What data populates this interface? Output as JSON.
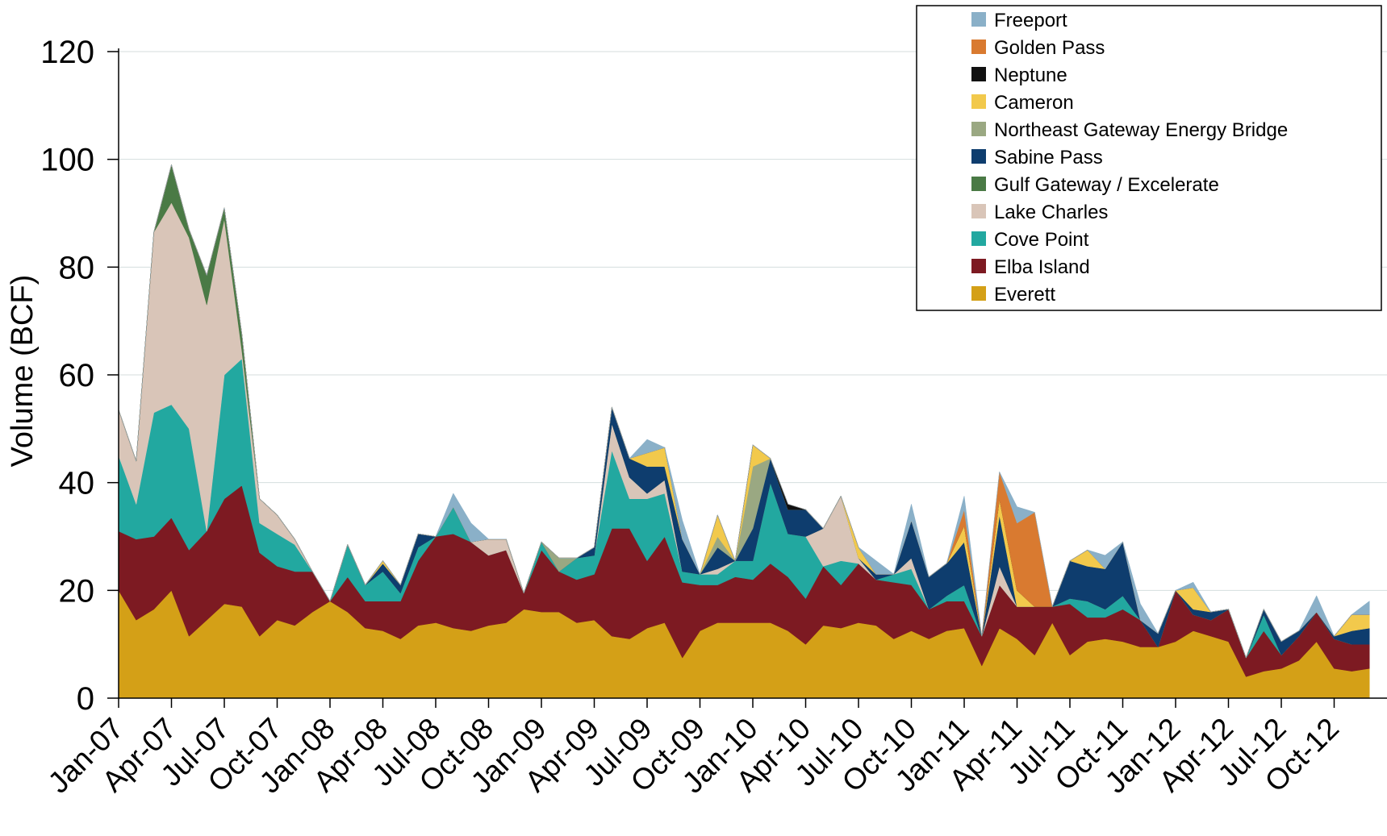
{
  "chart_data": {
    "type": "area",
    "stacked": true,
    "ylabel": "Volume (BCF)",
    "xlabel": "",
    "ylim": [
      0,
      120
    ],
    "yticks": [
      0,
      20,
      40,
      60,
      80,
      100,
      120
    ],
    "grid": "horizontal",
    "legend_position": "top-right",
    "x_tick_labels": [
      "Jan-07",
      "Apr-07",
      "Jul-07",
      "Oct-07",
      "Jan-08",
      "Apr-08",
      "Jul-08",
      "Oct-08",
      "Jan-09",
      "Apr-09",
      "Jul-09",
      "Oct-09",
      "Jan-10",
      "Apr-10",
      "Jul-10",
      "Oct-10",
      "Jan-11",
      "Apr-11",
      "Jul-11",
      "Oct-11",
      "Jan-12",
      "Apr-12",
      "Jul-12",
      "Oct-12"
    ],
    "series": [
      {
        "name": "Everett",
        "color": "#d4a017",
        "values": [
          20,
          14.5,
          16.5,
          20,
          11.5,
          14.5,
          17.5,
          17,
          11.5,
          14.5,
          13.5,
          16,
          18,
          16,
          13,
          12.5,
          11,
          13.5,
          14,
          13,
          12.5,
          13.5,
          14,
          16.5,
          16,
          16,
          14,
          14.5,
          11.5,
          11,
          13,
          14,
          7.5,
          12.5,
          14,
          14,
          14,
          14,
          12.5,
          10,
          13.5,
          13,
          14,
          13.5,
          11,
          12.5,
          11,
          12.5,
          13,
          6,
          13,
          11,
          8,
          14,
          8,
          10.5,
          11,
          10.5,
          9.5,
          9.5,
          10.5,
          12.5,
          11.5,
          10.5,
          4,
          5,
          5.5,
          7,
          10.5,
          5.5,
          5,
          5.5
        ]
      },
      {
        "name": "Elba Island",
        "color": "#7d1a22",
        "values": [
          11,
          15,
          13.5,
          13.5,
          16,
          16.5,
          19.5,
          22.5,
          15.5,
          10,
          10,
          7.5,
          0,
          6.5,
          5,
          5.5,
          7,
          12,
          16,
          17.5,
          16.5,
          13,
          13.5,
          3,
          11.5,
          7.5,
          8,
          8.5,
          20,
          20.5,
          12.5,
          16,
          14,
          8.5,
          7,
          8.5,
          8,
          11,
          10,
          8.5,
          11,
          8,
          11,
          8.5,
          10.5,
          8.5,
          5.5,
          5.5,
          5,
          5.5,
          8,
          6,
          9,
          3,
          9.5,
          4.5,
          4,
          6,
          5,
          0,
          9.5,
          3,
          3,
          6,
          3.5,
          7.5,
          2.5,
          4.5,
          5.5,
          5.5,
          5,
          4.5
        ]
      },
      {
        "name": "Cove Point",
        "color": "#22a8a0",
        "values": [
          14,
          6.5,
          23,
          21,
          22.5,
          0,
          23,
          23.5,
          5.5,
          6,
          5,
          0,
          0,
          6,
          3,
          5.5,
          1.5,
          2.5,
          0,
          5,
          0,
          0,
          0,
          0,
          1.5,
          0,
          4,
          3.5,
          14.5,
          5.5,
          11.5,
          8,
          2,
          2,
          2,
          3,
          3.5,
          15,
          8,
          11.5,
          0,
          4.5,
          0,
          0,
          1.5,
          3,
          0,
          1,
          3,
          0,
          0,
          0,
          0,
          0,
          1,
          3,
          1.5,
          2.5,
          0,
          0,
          0,
          0,
          0,
          0,
          0,
          3,
          0,
          0,
          0,
          0,
          0,
          0
        ]
      },
      {
        "name": "Lake Charles",
        "color": "#d9c5b8",
        "values": [
          8.5,
          8,
          33.5,
          37.5,
          35.5,
          42,
          29,
          1.5,
          4.5,
          3.5,
          1,
          0,
          0,
          0,
          0,
          0,
          0,
          0,
          0,
          0,
          0,
          3,
          2,
          0,
          0,
          0,
          0,
          0,
          5,
          4,
          1,
          2.5,
          0,
          0,
          1,
          0,
          0,
          0,
          0,
          0,
          7,
          12,
          1,
          0,
          0,
          2,
          0,
          0,
          0,
          0,
          3.5,
          0,
          0,
          0,
          0,
          0,
          0,
          0,
          0,
          0,
          0,
          0,
          0,
          0,
          0,
          0,
          0,
          0,
          0,
          0,
          0,
          0
        ]
      },
      {
        "name": "Gulf Gateway / Excelerate",
        "color": "#4a7a45",
        "values": [
          0,
          0,
          0,
          7,
          1.5,
          5.5,
          2,
          3,
          0,
          0,
          0,
          0,
          0,
          0,
          0,
          0,
          0,
          0,
          0,
          0,
          0,
          0,
          0,
          0,
          0,
          0,
          0,
          0,
          0,
          0,
          0,
          0,
          0,
          0,
          0,
          0,
          0,
          0,
          0,
          0,
          0,
          0,
          0,
          0,
          0,
          0,
          0,
          0,
          0,
          0,
          0,
          0,
          0,
          0,
          0,
          0,
          0,
          0,
          0,
          0,
          0,
          0,
          0,
          0,
          0,
          0,
          0,
          0,
          0,
          0,
          0,
          0
        ]
      },
      {
        "name": "Sabine Pass",
        "color": "#0e3d6e",
        "values": [
          0,
          0,
          0,
          0,
          0,
          0,
          0,
          0,
          0,
          0,
          0,
          0,
          0,
          0,
          0,
          1.5,
          1.5,
          2.5,
          0,
          0,
          0,
          0,
          0,
          0,
          0,
          0,
          0,
          1.5,
          3,
          3.5,
          5,
          2.5,
          6,
          0,
          4,
          0,
          6,
          4.5,
          4.5,
          5,
          0,
          0,
          0,
          1,
          0,
          7,
          6,
          6,
          8,
          0,
          9.5,
          0,
          0,
          0,
          7,
          6.5,
          7.5,
          10,
          0,
          2.5,
          0,
          1,
          1.5,
          0,
          0,
          1,
          2.5,
          1,
          0,
          0.5,
          2.5,
          3
        ]
      },
      {
        "name": "Northeast Gateway Energy Bridge",
        "color": "#9aa882",
        "values": [
          0,
          0,
          0,
          0,
          0,
          0,
          0,
          0,
          0,
          0,
          0,
          0,
          0,
          0,
          0,
          0,
          0,
          0,
          0,
          0,
          0,
          0,
          0,
          0,
          0,
          2.5,
          0,
          0,
          0,
          0,
          0,
          0,
          0,
          0,
          2,
          0,
          11.5,
          0,
          0,
          0,
          0,
          0,
          0,
          0,
          0,
          0,
          0,
          0,
          0,
          0,
          0,
          0,
          0,
          0,
          0,
          0,
          0,
          0,
          0,
          0,
          0,
          0,
          0,
          0,
          0,
          0,
          0,
          0,
          0,
          0,
          0,
          0
        ]
      },
      {
        "name": "Cameron",
        "color": "#f2c94c",
        "values": [
          0,
          0,
          0,
          0,
          0,
          0,
          0,
          0,
          0,
          0,
          0,
          0,
          0,
          0,
          0,
          0.5,
          0,
          0,
          0,
          0,
          0,
          0,
          0,
          0,
          0,
          0,
          0,
          0,
          0,
          0,
          2.5,
          3.5,
          0,
          0,
          4,
          0,
          4,
          0,
          0,
          0,
          0,
          0,
          2,
          0,
          0,
          0,
          0,
          0,
          3,
          0,
          3,
          3,
          0,
          0,
          0,
          3,
          0,
          0,
          0,
          0,
          0,
          4,
          0,
          0,
          0,
          0,
          0,
          0,
          0,
          0,
          3,
          2.5
        ]
      },
      {
        "name": "Neptune",
        "color": "#111111",
        "values": [
          0,
          0,
          0,
          0,
          0,
          0,
          0,
          0,
          0,
          0,
          0,
          0,
          0,
          0,
          0,
          0,
          0,
          0,
          0,
          0,
          0,
          0,
          0,
          0,
          0,
          0,
          0,
          0,
          0,
          0,
          0,
          0,
          0,
          0,
          0,
          0,
          0,
          0,
          1,
          0,
          0,
          0,
          0,
          0,
          0,
          0,
          0,
          0,
          0,
          0,
          0,
          0,
          0,
          0,
          0,
          0,
          0,
          0,
          0,
          0,
          0,
          0,
          0,
          0,
          0,
          0,
          0,
          0,
          0,
          0,
          0,
          0
        ]
      },
      {
        "name": "Golden Pass",
        "color": "#d97a30",
        "values": [
          0,
          0,
          0,
          0,
          0,
          0,
          0,
          0,
          0,
          0,
          0,
          0,
          0,
          0,
          0,
          0,
          0,
          0,
          0,
          0,
          0,
          0,
          0,
          0,
          0,
          0,
          0,
          0,
          0,
          0,
          0,
          0,
          0,
          0,
          0,
          0,
          0,
          0,
          0,
          0,
          0,
          0,
          0,
          0,
          0,
          0,
          0,
          0,
          3,
          0,
          5,
          12.5,
          17.5,
          0,
          0,
          0,
          0,
          0,
          0,
          0,
          0,
          0,
          0,
          0,
          0,
          0,
          0,
          0,
          0,
          0,
          0,
          0
        ]
      },
      {
        "name": "Freeport",
        "color": "#8ab0c8",
        "values": [
          0,
          0,
          0,
          0,
          0,
          0,
          0,
          0,
          0,
          0,
          0,
          0,
          0,
          0,
          0,
          0,
          0,
          0,
          0,
          2.5,
          3.5,
          0,
          0,
          0,
          0,
          0,
          0,
          0,
          0,
          0,
          2.5,
          0,
          3.5,
          0,
          0,
          0,
          0,
          0,
          0,
          0,
          0,
          0,
          0,
          2.5,
          0,
          3,
          0,
          0,
          2.5,
          0,
          0,
          3,
          0,
          0,
          0,
          0,
          2.5,
          0,
          3,
          0,
          0,
          1,
          0,
          0,
          0,
          0,
          0,
          0,
          3,
          0,
          0,
          2.5
        ]
      }
    ]
  }
}
